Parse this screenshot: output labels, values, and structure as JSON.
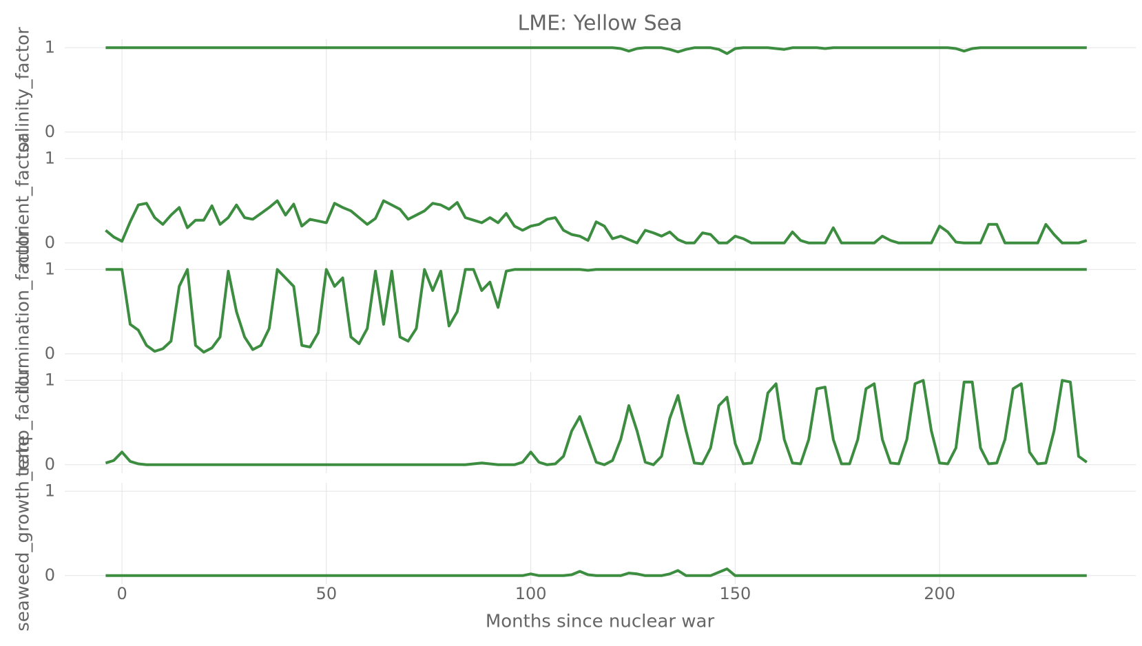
{
  "chart_data": {
    "type": "line",
    "title": "LME: Yellow Sea",
    "xlabel": "Months since nuclear war",
    "xlim": [
      -14,
      248
    ],
    "xticks": [
      0,
      50,
      100,
      150,
      200
    ],
    "grid": true,
    "x": [
      -4,
      -2,
      0,
      2,
      4,
      6,
      8,
      10,
      12,
      14,
      16,
      18,
      20,
      22,
      24,
      26,
      28,
      30,
      32,
      34,
      36,
      38,
      40,
      42,
      44,
      46,
      48,
      50,
      52,
      54,
      56,
      58,
      60,
      62,
      64,
      66,
      68,
      70,
      72,
      74,
      76,
      78,
      80,
      82,
      84,
      86,
      88,
      90,
      92,
      94,
      96,
      98,
      100,
      102,
      104,
      106,
      108,
      110,
      112,
      114,
      116,
      118,
      120,
      122,
      124,
      126,
      128,
      130,
      132,
      134,
      136,
      138,
      140,
      142,
      144,
      146,
      148,
      150,
      152,
      154,
      156,
      158,
      160,
      162,
      164,
      166,
      168,
      170,
      172,
      174,
      176,
      178,
      180,
      182,
      184,
      186,
      188,
      190,
      192,
      194,
      196,
      198,
      200,
      202,
      204,
      206,
      208,
      210,
      212,
      214,
      216,
      218,
      220,
      222,
      224,
      226,
      228,
      230,
      232,
      234,
      236
    ],
    "panels": [
      {
        "ylabel": "salinity_factor",
        "color": "#3c8d40",
        "ylim": [
          -0.1,
          1.1
        ],
        "yticks": [
          0,
          1
        ],
        "values": [
          1,
          1,
          1,
          1,
          1,
          1,
          1,
          1,
          1,
          1,
          1,
          1,
          1,
          1,
          1,
          1,
          1,
          1,
          1,
          1,
          1,
          1,
          1,
          1,
          1,
          1,
          1,
          1,
          1,
          1,
          1,
          1,
          1,
          1,
          1,
          1,
          1,
          1,
          1,
          1,
          1,
          1,
          1,
          1,
          1,
          1,
          1,
          1,
          1,
          1,
          1,
          1,
          1,
          1,
          1,
          1,
          1,
          1,
          1,
          1,
          1,
          1,
          1,
          0.99,
          0.96,
          0.99,
          1,
          1,
          1,
          0.98,
          0.95,
          0.98,
          1,
          1,
          1,
          0.98,
          0.93,
          0.99,
          1,
          1,
          1,
          1,
          0.99,
          0.98,
          1,
          1,
          1,
          1,
          0.99,
          1,
          1,
          1,
          1,
          1,
          1,
          1,
          1,
          1,
          1,
          1,
          1,
          1,
          1,
          1,
          0.99,
          0.96,
          0.99,
          1,
          1,
          1,
          1,
          1,
          1,
          1,
          1,
          1,
          1,
          1,
          1,
          1,
          1
        ]
      },
      {
        "ylabel": "nutrient_factor",
        "color": "#3c8d40",
        "ylim": [
          -0.1,
          1.1
        ],
        "yticks": [
          0,
          1
        ],
        "values": [
          0.15,
          0.07,
          0.02,
          0.25,
          0.45,
          0.47,
          0.3,
          0.22,
          0.33,
          0.42,
          0.18,
          0.27,
          0.27,
          0.44,
          0.22,
          0.3,
          0.45,
          0.3,
          0.28,
          0.35,
          0.42,
          0.5,
          0.33,
          0.46,
          0.2,
          0.28,
          0.26,
          0.24,
          0.47,
          0.42,
          0.38,
          0.3,
          0.22,
          0.29,
          0.5,
          0.45,
          0.4,
          0.28,
          0.33,
          0.38,
          0.47,
          0.45,
          0.4,
          0.48,
          0.3,
          0.27,
          0.24,
          0.3,
          0.24,
          0.35,
          0.2,
          0.15,
          0.2,
          0.22,
          0.28,
          0.3,
          0.15,
          0.1,
          0.08,
          0.03,
          0.25,
          0.2,
          0.05,
          0.08,
          0.04,
          0,
          0.15,
          0.12,
          0.08,
          0.13,
          0.04,
          0,
          0,
          0.12,
          0.1,
          0,
          0,
          0.08,
          0.05,
          0,
          0,
          0,
          0,
          0,
          0.13,
          0.03,
          0,
          0,
          0,
          0.18,
          0,
          0,
          0,
          0,
          0,
          0.08,
          0.03,
          0,
          0,
          0,
          0,
          0,
          0.2,
          0.13,
          0.01,
          0,
          0,
          0,
          0.22,
          0.22,
          0,
          0,
          0,
          0,
          0,
          0.22,
          0.1,
          0,
          0,
          0,
          0.03
        ]
      },
      {
        "ylabel": "illumination_factor",
        "color": "#3c8d40",
        "ylim": [
          -0.1,
          1.1
        ],
        "yticks": [
          0,
          1
        ],
        "values": [
          1,
          1,
          1,
          0.35,
          0.28,
          0.1,
          0.03,
          0.06,
          0.15,
          0.8,
          1,
          0.1,
          0.02,
          0.07,
          0.2,
          0.98,
          0.5,
          0.2,
          0.05,
          0.1,
          0.3,
          1,
          0.9,
          0.8,
          0.1,
          0.08,
          0.25,
          1,
          0.8,
          0.9,
          0.2,
          0.12,
          0.3,
          0.98,
          0.35,
          0.98,
          0.2,
          0.15,
          0.3,
          1,
          0.75,
          0.98,
          0.33,
          0.5,
          1,
          1,
          0.75,
          0.85,
          0.55,
          0.98,
          1,
          1,
          1,
          1,
          1,
          1,
          1,
          1,
          1,
          0.99,
          1,
          1,
          1,
          1,
          1,
          1,
          1,
          1,
          1,
          1,
          1,
          1,
          1,
          1,
          1,
          1,
          1,
          1,
          1,
          1,
          1,
          1,
          1,
          1,
          1,
          1,
          1,
          1,
          1,
          1,
          1,
          1,
          1,
          1,
          1,
          1,
          1,
          1,
          1,
          1,
          1,
          1,
          1,
          1,
          1,
          1,
          1,
          1,
          1,
          1,
          1,
          1,
          1,
          1,
          1,
          1,
          1,
          1,
          1,
          1,
          1
        ]
      },
      {
        "ylabel": "temp_factor",
        "color": "#3c8d40",
        "ylim": [
          -0.1,
          1.1
        ],
        "yticks": [
          0,
          1
        ],
        "values": [
          0.02,
          0.05,
          0.15,
          0.04,
          0.01,
          0,
          0,
          0,
          0,
          0,
          0,
          0,
          0,
          0,
          0,
          0,
          0,
          0,
          0,
          0,
          0,
          0,
          0,
          0,
          0,
          0,
          0,
          0,
          0,
          0,
          0,
          0,
          0,
          0,
          0,
          0,
          0,
          0,
          0,
          0,
          0,
          0,
          0,
          0,
          0,
          0.01,
          0.02,
          0.01,
          0,
          0,
          0,
          0.03,
          0.15,
          0.03,
          0,
          0.01,
          0.1,
          0.4,
          0.57,
          0.3,
          0.03,
          0,
          0.05,
          0.3,
          0.7,
          0.4,
          0.03,
          0,
          0.1,
          0.55,
          0.82,
          0.4,
          0.02,
          0.01,
          0.2,
          0.7,
          0.8,
          0.25,
          0.01,
          0.02,
          0.3,
          0.85,
          0.96,
          0.3,
          0.02,
          0.01,
          0.3,
          0.9,
          0.92,
          0.3,
          0.01,
          0.01,
          0.3,
          0.9,
          0.96,
          0.3,
          0.02,
          0.01,
          0.3,
          0.96,
          1,
          0.4,
          0.02,
          0.01,
          0.2,
          0.98,
          0.98,
          0.2,
          0.01,
          0.02,
          0.3,
          0.9,
          0.96,
          0.15,
          0.01,
          0.02,
          0.4,
          1,
          0.98,
          0.1,
          0.03
        ]
      },
      {
        "ylabel": "seaweed_growth_rate",
        "color": "#3c8d40",
        "ylim": [
          -0.1,
          1.1
        ],
        "yticks": [
          0,
          1
        ],
        "values": [
          0,
          0,
          0,
          0,
          0,
          0,
          0,
          0,
          0,
          0,
          0,
          0,
          0,
          0,
          0,
          0,
          0,
          0,
          0,
          0,
          0,
          0,
          0,
          0,
          0,
          0,
          0,
          0,
          0,
          0,
          0,
          0,
          0,
          0,
          0,
          0,
          0,
          0,
          0,
          0,
          0,
          0,
          0,
          0,
          0,
          0,
          0,
          0,
          0,
          0,
          0,
          0,
          0.02,
          0,
          0,
          0,
          0,
          0.01,
          0.05,
          0.01,
          0,
          0,
          0,
          0,
          0.03,
          0.02,
          0,
          0,
          0,
          0.02,
          0.06,
          0,
          0,
          0,
          0,
          0.04,
          0.08,
          0,
          0,
          0,
          0,
          0,
          0,
          0,
          0,
          0,
          0,
          0,
          0,
          0,
          0,
          0,
          0,
          0,
          0,
          0,
          0,
          0,
          0,
          0,
          0,
          0,
          0,
          0,
          0,
          0,
          0,
          0,
          0,
          0,
          0,
          0,
          0,
          0,
          0,
          0,
          0,
          0,
          0,
          0,
          0
        ]
      }
    ]
  }
}
